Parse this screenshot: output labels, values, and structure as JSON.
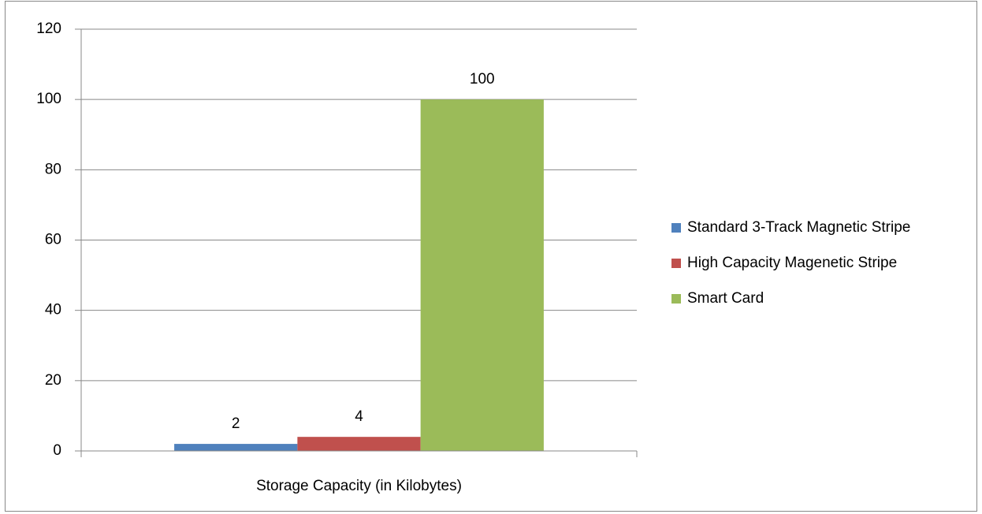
{
  "chart_data": {
    "type": "bar",
    "categories": [
      "Storage Capacity (in Kilobytes)"
    ],
    "series": [
      {
        "name": "Standard 3-Track Magnetic Stripe",
        "color": "#4f81bd",
        "values": [
          2
        ]
      },
      {
        "name": "High Capacity Magenetic Stripe",
        "color": "#c0504d",
        "values": [
          4
        ]
      },
      {
        "name": "Smart Card",
        "color": "#9bbb59",
        "values": [
          100
        ]
      }
    ],
    "ylim": [
      0,
      120
    ],
    "yticks": [
      0,
      20,
      40,
      60,
      80,
      100,
      120
    ],
    "grid": true,
    "legend": "right"
  }
}
